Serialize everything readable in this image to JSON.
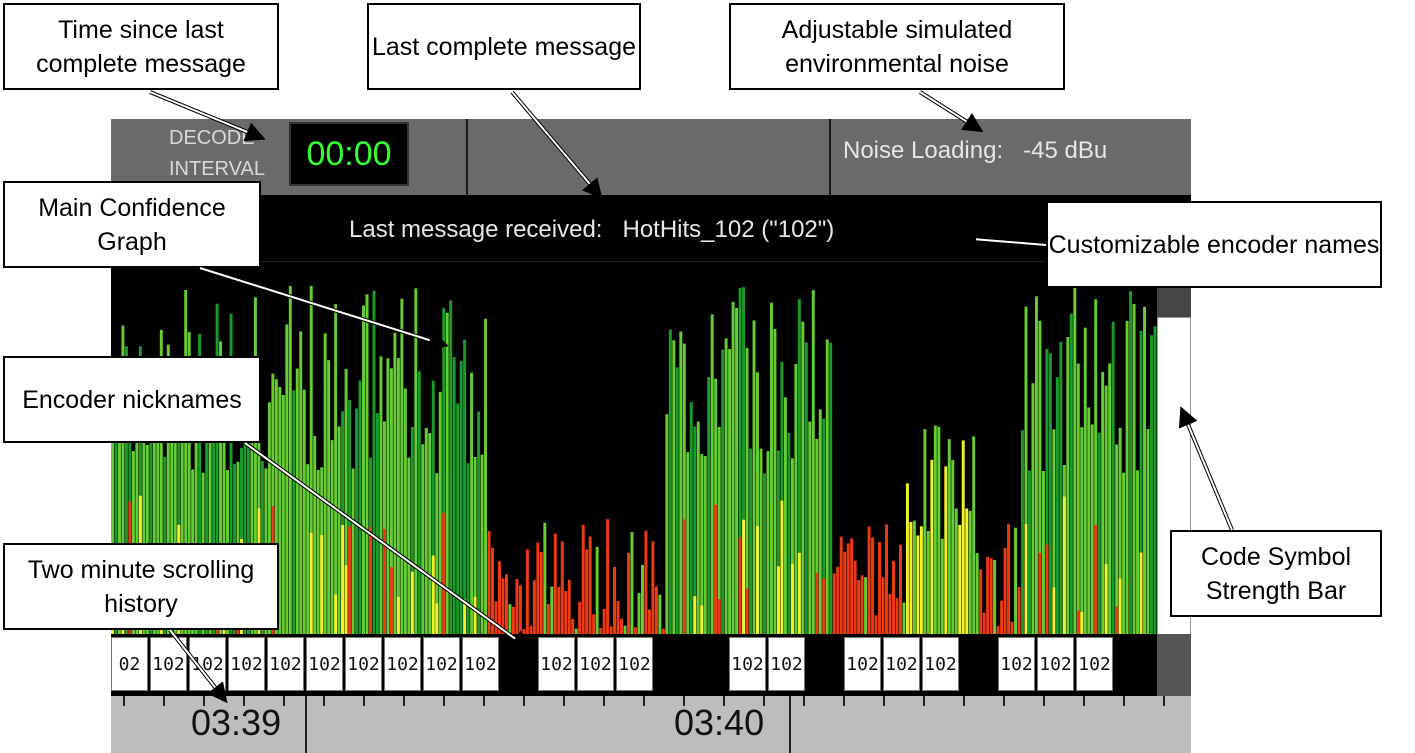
{
  "app": {
    "decode_label_line1": "DECODE",
    "decode_label_line2": "INTERVAL",
    "timer": "00:00",
    "noise_label": "Noise Loading:",
    "noise_value": "-45 dBu",
    "last_msg_label": "Last message received:",
    "last_msg_value": "HotHits_102 (\"102\")"
  },
  "callouts": {
    "time_since": "Time since last complete message",
    "last_complete": "Last complete message",
    "adjustable_noise": "Adjustable simulated environmental noise",
    "main_confidence": "Main Confidence Graph",
    "customizable": "Customizable encoder names",
    "encoder_nicknames": "Encoder nicknames",
    "code_symbol": "Code Symbol Strength Bar",
    "two_minute": "Two minute scrolling history"
  },
  "timeline": {
    "labels": [
      "03:39",
      "03:40"
    ]
  },
  "nicknames": {
    "visible": [
      "02",
      "102",
      "102",
      "102",
      "102",
      "102",
      "102",
      "102",
      "102",
      "102",
      "",
      "102",
      "102",
      "102",
      "",
      "",
      "102",
      "102",
      "",
      "102",
      "102",
      "102",
      "",
      "102",
      "102",
      "102"
    ]
  },
  "colors": {
    "dark_green": "#1a9a2a",
    "light_green": "#66cc33",
    "yellow": "#f2f22a",
    "red": "#ee3a12",
    "timer_green": "#33ff33"
  }
}
